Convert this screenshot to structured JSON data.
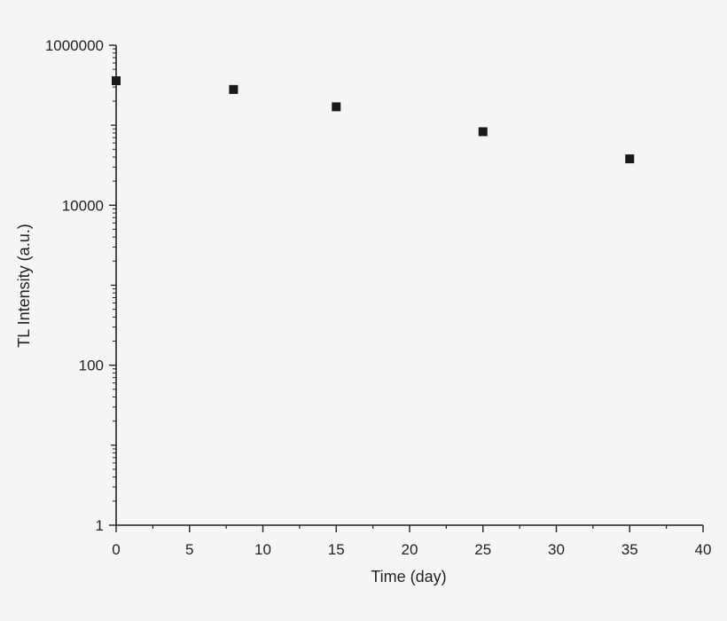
{
  "chart_data": {
    "type": "scatter",
    "xlabel": "Time (day)",
    "ylabel": "TL Intensity (a.u.)",
    "xlim": [
      0,
      40
    ],
    "ylim": [
      1,
      1000000
    ],
    "yscale": "log",
    "x_ticks": [
      0,
      5,
      10,
      15,
      20,
      25,
      30,
      35,
      40
    ],
    "x_tick_labels": [
      "0",
      "5",
      "10",
      "15",
      "20",
      "25",
      "30",
      "35",
      "40"
    ],
    "y_ticks": [
      1,
      100,
      10000,
      1000000
    ],
    "y_tick_labels": [
      "1",
      "100",
      "10000",
      "1000000"
    ],
    "grid": false,
    "marker_color": "#1a1a1a",
    "axis_color": "#222222",
    "series": [
      {
        "marker": "square",
        "points": [
          {
            "x": 0,
            "y": 360000
          },
          {
            "x": 8,
            "y": 280000
          },
          {
            "x": 15,
            "y": 170000
          },
          {
            "x": 25,
            "y": 83000
          },
          {
            "x": 35,
            "y": 38000
          }
        ]
      }
    ]
  }
}
